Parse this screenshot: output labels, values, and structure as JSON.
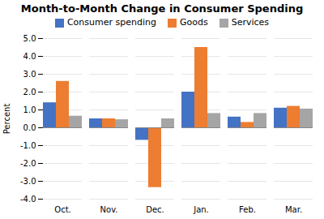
{
  "chart_data": {
    "type": "bar",
    "title": "Month-to-Month Change in Consumer Spending",
    "categories": [
      "Oct.",
      "Nov.",
      "Dec.",
      "Jan.",
      "Feb.",
      "Mar."
    ],
    "series": [
      {
        "name": "Consumer spending",
        "color": "#4472C4",
        "values": [
          1.4,
          0.5,
          -0.7,
          2.0,
          0.6,
          1.1
        ]
      },
      {
        "name": "Goods",
        "color": "#ED7D31",
        "values": [
          2.6,
          0.5,
          -3.35,
          4.5,
          0.3,
          1.2
        ]
      },
      {
        "name": "Services",
        "color": "#A5A5A5",
        "values": [
          0.65,
          0.45,
          0.5,
          0.8,
          0.8,
          1.05
        ]
      }
    ],
    "ylabel": "Percent",
    "ylim": [
      -4.0,
      5.0
    ],
    "yticks": [
      {
        "value": -4,
        "label": "-4.0"
      },
      {
        "value": -3,
        "label": "-3.0"
      },
      {
        "value": -2,
        "label": "-2.0"
      },
      {
        "value": -1,
        "label": "-1.0"
      },
      {
        "value": 0,
        "label": "0.0"
      },
      {
        "value": 1,
        "label": "1.0"
      },
      {
        "value": 2,
        "label": "2.0"
      },
      {
        "value": 3,
        "label": "3.0"
      },
      {
        "value": 4,
        "label": "4.0"
      },
      {
        "value": 5,
        "label": "5.0"
      }
    ],
    "grid": true,
    "legend": "top"
  }
}
